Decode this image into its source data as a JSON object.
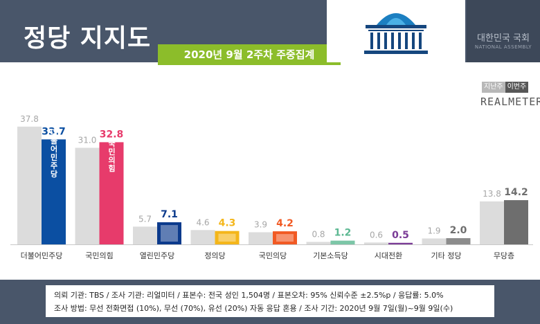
{
  "header": {
    "title": "정당 지지도",
    "subtitle": "2020년 9월 2주차 주중집계",
    "assembly_name": "대한민국 국회",
    "assembly_name_en": "NATIONAL ASSEMBLY"
  },
  "legend": {
    "prev_label": "지난주",
    "curr_label": "이번주",
    "brand": "REALMETER"
  },
  "colors": {
    "header_bg": "#49566a",
    "subtitle_bg": "#8cbd2a",
    "prev_bar": "#dcdcdc",
    "neutral_current": "#8c8c8c"
  },
  "chart_data": {
    "type": "bar",
    "categories": [
      "더불어민주당",
      "국민의힘",
      "열린민주당",
      "정의당",
      "국민의당",
      "기본소득당",
      "시대전환",
      "기타 정당",
      "무당층"
    ],
    "series": [
      {
        "name": "지난주",
        "values": [
          37.8,
          31.0,
          5.7,
          4.6,
          3.9,
          0.8,
          0.6,
          1.9,
          13.8
        ]
      },
      {
        "name": "이번주",
        "values": [
          33.7,
          32.8,
          7.1,
          4.3,
          4.2,
          1.2,
          0.5,
          2.0,
          14.2
        ]
      }
    ],
    "current_colors": [
      "#0b4fa2",
      "#e73b6b",
      "#0b3a8c",
      "#f4b61a",
      "#f15a24",
      "#7cc6a7",
      "#7a3b96",
      "#8c8c8c",
      "#6e6e6e"
    ],
    "current_label_colors": [
      "#0b4fa2",
      "#e73b6b",
      "#0b3a8c",
      "#f4b61a",
      "#f15a24",
      "#5cb892",
      "#7a3b96",
      "#6e6e6e",
      "#6e6e6e"
    ],
    "logos": [
      "더불어민주당",
      "국민의힘",
      "열린민주당",
      "정의당",
      "국민의당",
      "",
      "",
      "",
      ""
    ],
    "title": "",
    "xlabel": "",
    "ylabel": "",
    "ylim": [
      0,
      40
    ],
    "grid": false,
    "legend_position": "top-right"
  },
  "footer": {
    "line1": "의뢰 기관: TBS / 조사 기관: 리얼미터 / 표본수: 전국 성인 1,504명 / 표본오차: 95% 신뢰수준 ±2.5%p / 응답률: 5.0%",
    "line2": "조사 방법: 무선 전화면접 (10%), 무선 (70%), 유선 (20%) 자동 응답 혼용 / 조사 기간: 2020년 9월 7일(월)~9월 9일(수)"
  }
}
